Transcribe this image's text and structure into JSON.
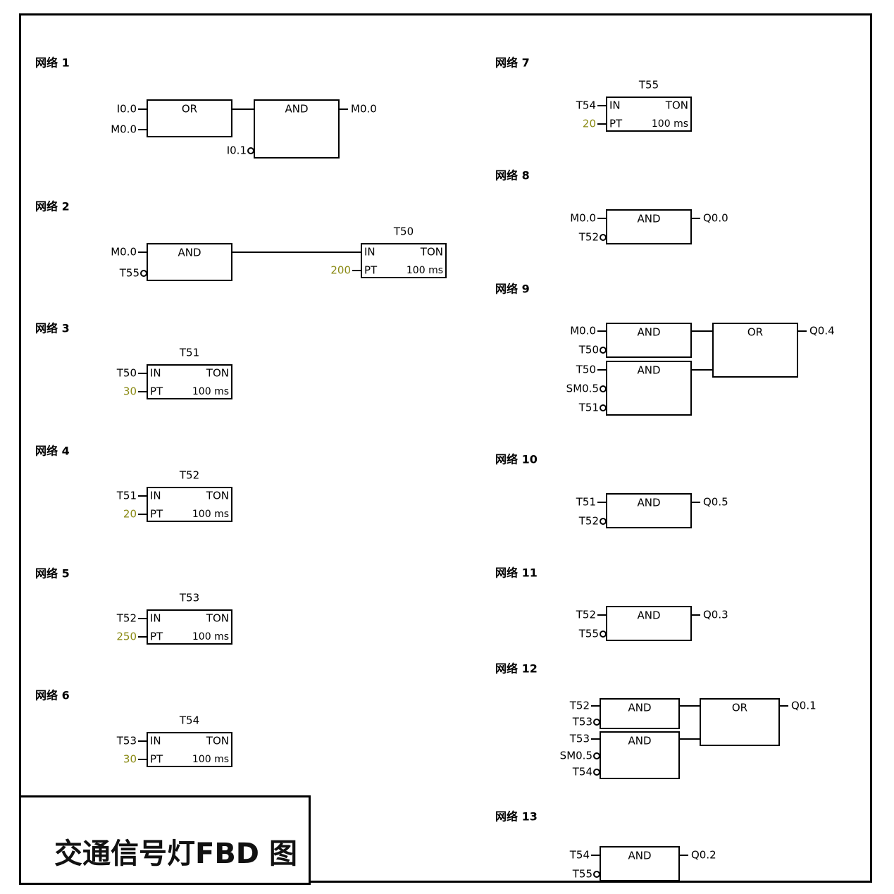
{
  "caption": "交通信号灯FBD 图",
  "colors": {
    "line": "#000000",
    "constant": "#8a8a14",
    "text": "#000000"
  },
  "networks": [
    {
      "title": "网络 1",
      "blocks": [
        {
          "type": "OR",
          "inputs": [
            {
              "label": "I0.0"
            },
            {
              "label": "M0.0"
            }
          ]
        },
        {
          "type": "AND",
          "inputs": [
            {
              "from": 0
            },
            {
              "label": "I0.1",
              "negated": true
            }
          ],
          "output": "M0.0"
        }
      ]
    },
    {
      "title": "网络 2",
      "blocks": [
        {
          "type": "AND",
          "inputs": [
            {
              "label": "M0.0"
            },
            {
              "label": "T55",
              "negated": true
            }
          ]
        },
        {
          "type": "TON",
          "name": "T50",
          "in_from": 0,
          "pt": "200",
          "base": "100 ms"
        }
      ]
    },
    {
      "title": "网络 3",
      "blocks": [
        {
          "type": "TON",
          "name": "T51",
          "in": "T50",
          "pt": "30",
          "base": "100 ms"
        }
      ]
    },
    {
      "title": "网络 4",
      "blocks": [
        {
          "type": "TON",
          "name": "T52",
          "in": "T51",
          "pt": "20",
          "base": "100 ms"
        }
      ]
    },
    {
      "title": "网络 5",
      "blocks": [
        {
          "type": "TON",
          "name": "T53",
          "in": "T52",
          "pt": "250",
          "base": "100 ms"
        }
      ]
    },
    {
      "title": "网络 6",
      "blocks": [
        {
          "type": "TON",
          "name": "T54",
          "in": "T53",
          "pt": "30",
          "base": "100 ms"
        }
      ]
    },
    {
      "title": "网络 7",
      "blocks": [
        {
          "type": "TON",
          "name": "T55",
          "in": "T54",
          "pt": "20",
          "base": "100 ms"
        }
      ]
    },
    {
      "title": "网络 8",
      "blocks": [
        {
          "type": "AND",
          "inputs": [
            {
              "label": "M0.0"
            },
            {
              "label": "T52",
              "negated": true
            }
          ],
          "output": "Q0.0"
        }
      ]
    },
    {
      "title": "网络 9",
      "blocks": [
        {
          "type": "AND",
          "inputs": [
            {
              "label": "M0.0"
            },
            {
              "label": "T50",
              "negated": true
            }
          ]
        },
        {
          "type": "AND",
          "inputs": [
            {
              "label": "T50"
            },
            {
              "label": "SM0.5",
              "negated": true
            },
            {
              "label": "T51",
              "negated": true
            }
          ]
        },
        {
          "type": "OR",
          "inputs": [
            {
              "from": 0
            },
            {
              "from": 1
            }
          ],
          "output": "Q0.4"
        }
      ]
    },
    {
      "title": "网络 10",
      "blocks": [
        {
          "type": "AND",
          "inputs": [
            {
              "label": "T51"
            },
            {
              "label": "T52",
              "negated": true
            }
          ],
          "output": "Q0.5"
        }
      ]
    },
    {
      "title": "网络 11",
      "blocks": [
        {
          "type": "AND",
          "inputs": [
            {
              "label": "T52"
            },
            {
              "label": "T55",
              "negated": true
            }
          ],
          "output": "Q0.3"
        }
      ]
    },
    {
      "title": "网络 12",
      "blocks": [
        {
          "type": "AND",
          "inputs": [
            {
              "label": "T52"
            },
            {
              "label": "T53",
              "negated": true
            }
          ]
        },
        {
          "type": "AND",
          "inputs": [
            {
              "label": "T53"
            },
            {
              "label": "SM0.5",
              "negated": true
            },
            {
              "label": "T54",
              "negated": true
            }
          ]
        },
        {
          "type": "OR",
          "inputs": [
            {
              "from": 0
            },
            {
              "from": 1
            }
          ],
          "output": "Q0.1"
        }
      ]
    },
    {
      "title": "网络 13",
      "blocks": [
        {
          "type": "AND",
          "inputs": [
            {
              "label": "T54"
            },
            {
              "label": "T55",
              "negated": true
            }
          ],
          "output": "Q0.2"
        }
      ]
    }
  ]
}
